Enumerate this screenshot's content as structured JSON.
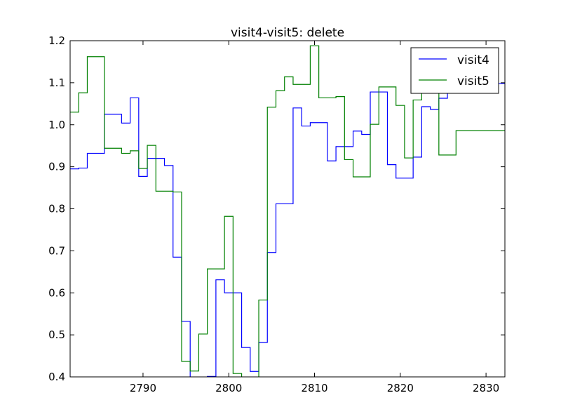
{
  "chart_data": {
    "type": "line",
    "title": "visit4-visit5: delete",
    "xlabel": "",
    "ylabel": "",
    "xlim": [
      2781.5,
      2832.2
    ],
    "ylim": [
      0.4,
      1.2
    ],
    "xticks": [
      2790,
      2800,
      2810,
      2820,
      2830
    ],
    "yticks": [
      0.4,
      0.5,
      0.6,
      0.7,
      0.8,
      0.9,
      1.0,
      1.1,
      1.2
    ],
    "xtick_labels": [
      "2790",
      "2800",
      "2810",
      "2820",
      "2830"
    ],
    "ytick_labels": [
      "0.4",
      "0.5",
      "0.6",
      "0.7",
      "0.8",
      "0.9",
      "1.0",
      "1.1",
      "1.2"
    ],
    "grid": false,
    "legend": {
      "position": "top-right"
    },
    "bin_edges": [
      2781.5,
      2782.5,
      2783.5,
      2784.5,
      2785.5,
      2786.5,
      2787.5,
      2788.5,
      2789.5,
      2790.5,
      2791.5,
      2792.5,
      2793.5,
      2794.5,
      2795.5,
      2796.5,
      2797.5,
      2798.5,
      2799.5,
      2800.5,
      2801.5,
      2802.5,
      2803.5,
      2804.5,
      2805.5,
      2806.5,
      2807.5,
      2808.5,
      2809.5,
      2810.5,
      2811.5,
      2812.5,
      2813.5,
      2814.5,
      2815.5,
      2816.5,
      2817.5,
      2818.5,
      2819.5,
      2820.5,
      2821.5,
      2822.5,
      2823.5,
      2824.5,
      2825.5,
      2826.5,
      2827.5,
      2828.5,
      2829.5,
      2830.5,
      2831.5,
      2832.5
    ],
    "series": [
      {
        "name": "visit4",
        "color": "#0000ff",
        "values": [
          0.895,
          0.897,
          0.932,
          0.932,
          1.025,
          1.025,
          1.004,
          1.064,
          0.877,
          0.92,
          0.92,
          0.903,
          0.685,
          0.532,
          0.39,
          0.39,
          0.401,
          0.631,
          0.6,
          0.6,
          0.47,
          0.413,
          0.482,
          0.696,
          0.812,
          0.812,
          1.04,
          0.997,
          1.005,
          1.005,
          0.914,
          0.948,
          0.948,
          0.985,
          0.977,
          1.078,
          1.078,
          0.905,
          0.873,
          0.873,
          0.923,
          1.043,
          1.037,
          1.063,
          1.098,
          1.098,
          1.098,
          1.098,
          1.098,
          1.098,
          1.098
        ]
      },
      {
        "name": "visit5",
        "color": "#008000",
        "values": [
          1.03,
          1.076,
          1.162,
          1.162,
          0.944,
          0.944,
          0.932,
          0.938,
          0.896,
          0.951,
          0.842,
          0.842,
          0.84,
          0.437,
          0.414,
          0.502,
          0.657,
          0.657,
          0.782,
          0.408,
          0.39,
          0.39,
          0.583,
          1.042,
          1.081,
          1.114,
          1.096,
          1.096,
          1.188,
          1.064,
          1.064,
          1.067,
          0.917,
          0.876,
          0.876,
          1.001,
          1.09,
          1.09,
          1.046,
          0.921,
          1.059,
          1.09,
          1.09,
          0.928,
          0.928,
          0.986,
          0.986,
          0.986,
          0.986,
          0.986,
          0.986
        ]
      }
    ]
  }
}
